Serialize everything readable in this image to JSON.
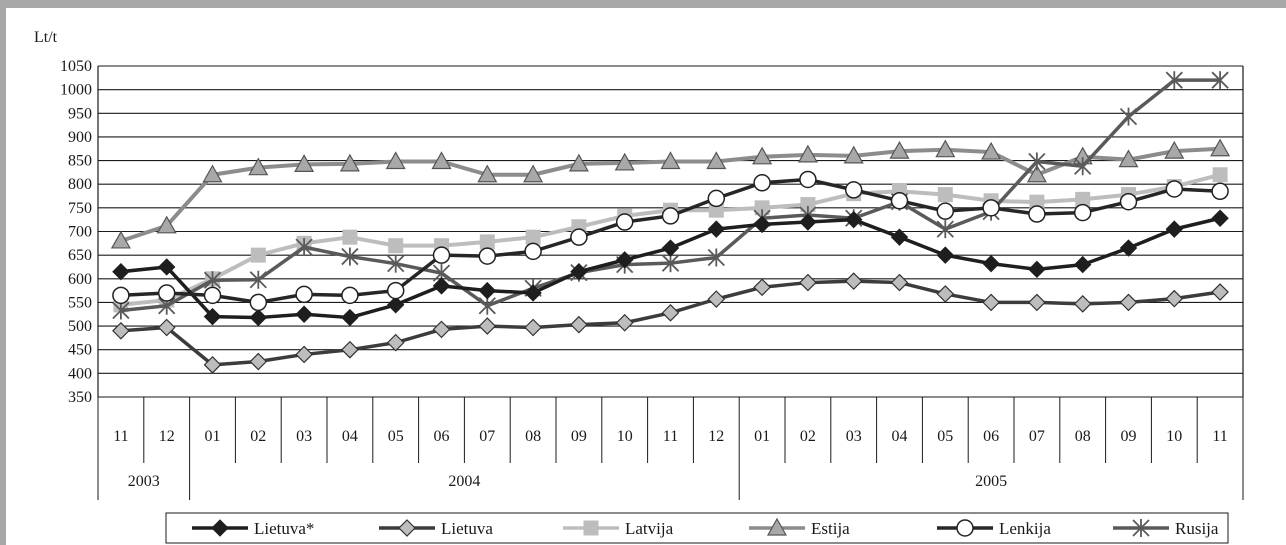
{
  "chart_data": {
    "type": "line",
    "ylabel": "Lt/t",
    "ylim": [
      350,
      1050
    ],
    "yticks": [
      350,
      400,
      450,
      500,
      550,
      600,
      650,
      700,
      750,
      800,
      850,
      900,
      950,
      1000,
      1050
    ],
    "grid": true,
    "legend_position": "bottom",
    "categories": [
      "11",
      "12",
      "01",
      "02",
      "03",
      "04",
      "05",
      "06",
      "07",
      "08",
      "09",
      "10",
      "11",
      "12",
      "01",
      "02",
      "03",
      "04",
      "05",
      "06",
      "07",
      "08",
      "09",
      "10",
      "11"
    ],
    "years": [
      {
        "label": "2003",
        "count": 2
      },
      {
        "label": "2004",
        "count": 12
      },
      {
        "label": "2005",
        "count": 11
      }
    ],
    "series": [
      {
        "name": "Lietuva*",
        "color": "#1e1e1e",
        "marker": "diamond-filled",
        "values": [
          615,
          625,
          520,
          518,
          525,
          518,
          545,
          585,
          575,
          570,
          615,
          640,
          665,
          705,
          715,
          720,
          725,
          688,
          650,
          632,
          620,
          630,
          665,
          705,
          728
        ]
      },
      {
        "name": "Lietuva",
        "color": "#3c3c3c",
        "marker": "diamond-open",
        "values": [
          490,
          497,
          418,
          425,
          440,
          450,
          465,
          493,
          500,
          497,
          503,
          507,
          528,
          557,
          582,
          592,
          595,
          592,
          568,
          550,
          550,
          547,
          550,
          558,
          572
        ]
      },
      {
        "name": "Latvija",
        "color": "#bdbdbd",
        "marker": "square",
        "values": [
          545,
          555,
          600,
          650,
          675,
          688,
          670,
          670,
          678,
          688,
          710,
          733,
          745,
          745,
          750,
          757,
          780,
          785,
          778,
          765,
          762,
          768,
          778,
          795,
          820
        ]
      },
      {
        "name": "Estija",
        "color": "#8c8c8c",
        "marker": "triangle",
        "values": [
          680,
          712,
          820,
          835,
          842,
          843,
          848,
          848,
          820,
          820,
          843,
          845,
          848,
          848,
          858,
          862,
          860,
          870,
          873,
          868,
          820,
          858,
          852,
          870,
          875
        ]
      },
      {
        "name": "Lenkija",
        "color": "#262626",
        "marker": "circle",
        "values": [
          565,
          570,
          565,
          550,
          567,
          565,
          575,
          650,
          648,
          658,
          688,
          720,
          733,
          770,
          803,
          810,
          788,
          765,
          743,
          750,
          737,
          740,
          763,
          790,
          785
        ]
      },
      {
        "name": "Rusija",
        "color": "#5a5a5a",
        "marker": "star",
        "values": [
          533,
          543,
          597,
          598,
          667,
          647,
          632,
          612,
          543,
          580,
          613,
          630,
          633,
          645,
          728,
          735,
          728,
          763,
          705,
          742,
          848,
          838,
          943,
          1020,
          1020
        ]
      }
    ]
  }
}
